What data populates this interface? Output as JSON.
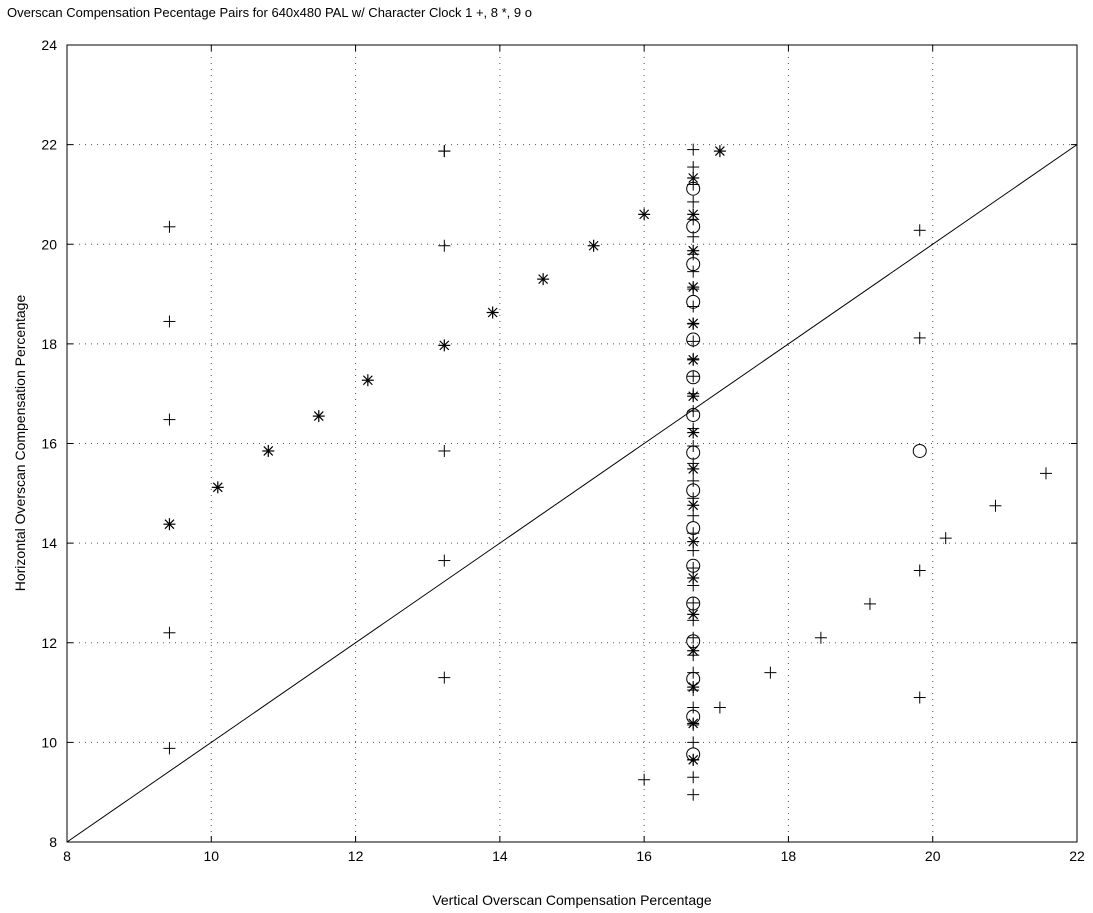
{
  "chart_data": {
    "type": "scatter",
    "title": "Overscan Compensation Pecentage Pairs for 640x480 PAL w/ Character Clock 1 +, 8 *, 9 o",
    "xlabel": "Vertical Overscan Compensation Percentage",
    "ylabel": "Horizontal Overscan Compensation Percentage",
    "xlim": [
      8,
      22
    ],
    "ylim": [
      8,
      24
    ],
    "xticks": [
      "8",
      "10",
      "12",
      "14",
      "16",
      "18",
      "20",
      "22"
    ],
    "yticks": [
      "8",
      "10",
      "12",
      "14",
      "16",
      "18",
      "20",
      "22",
      "24"
    ],
    "grid": true,
    "reference_line": {
      "x": [
        8,
        22
      ],
      "y": [
        8,
        22
      ]
    },
    "series": [
      {
        "marker": "+",
        "x": [
          9.42,
          9.42,
          9.42,
          9.42,
          9.42,
          13.23,
          13.23,
          13.23,
          13.23,
          13.23,
          13.23,
          16.0,
          17.05,
          17.75,
          18.45,
          19.13,
          19.82,
          19.82,
          19.82,
          19.82,
          20.18,
          20.87,
          21.57
        ],
        "y": [
          20.35,
          18.45,
          16.48,
          12.2,
          9.88,
          21.87,
          19.97,
          15.85,
          13.65,
          11.3,
          21.87,
          9.25,
          10.7,
          11.4,
          12.1,
          12.78,
          20.28,
          18.12,
          13.45,
          10.9,
          14.1,
          14.75,
          15.4
        ],
        "column_x": 16.68,
        "column_y_range": [
          8.95,
          21.95
        ],
        "column_step": 0.35
      },
      {
        "marker": "*",
        "x": [
          9.42,
          10.09,
          10.79,
          11.49,
          12.17,
          13.23,
          13.9,
          14.6,
          15.3,
          16.0,
          17.05
        ],
        "y": [
          14.38,
          15.12,
          15.85,
          16.55,
          17.27,
          17.97,
          18.63,
          19.3,
          19.97,
          20.6,
          21.87
        ],
        "column_x": 16.68,
        "column_y_range": [
          9.65,
          21.9
        ],
        "column_step": 0.73
      },
      {
        "marker": "o",
        "x": [
          19.82
        ],
        "y": [
          15.85
        ],
        "column_x": 16.68,
        "column_y_range": [
          9.76,
          21.87
        ],
        "column_step": 0.757
      }
    ]
  }
}
